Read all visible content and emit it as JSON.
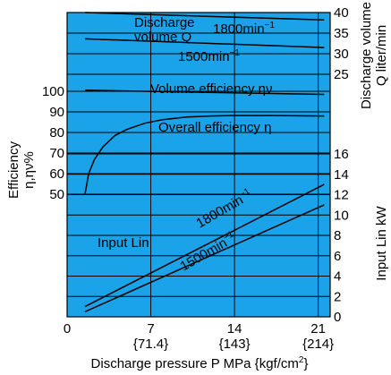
{
  "chart_data": {
    "type": "line",
    "x_axis": {
      "label_main": "Discharge pressure P MPa {kgf/cm",
      "label_sup": "2",
      "label_end": "}",
      "range": [
        0,
        22
      ],
      "ticks": [
        0,
        7,
        14,
        21
      ],
      "tick_labels": [
        "0",
        "7",
        "14",
        "21"
      ],
      "sub_tick_labels": [
        "",
        "{71.4}",
        "{143}",
        "{214}"
      ]
    },
    "left_axis": {
      "label_line1": "Efficiency",
      "label_line2": "η,ην%",
      "ticks": [
        50,
        60,
        70,
        80,
        90,
        100
      ],
      "tick_labels": [
        "50",
        "60",
        "70",
        "80",
        "90",
        "100"
      ]
    },
    "right_upper_axis": {
      "label_line1": "Discharge volume",
      "label_line2": "Q liter/min",
      "ticks": [
        25,
        30,
        35,
        40
      ],
      "tick_labels": [
        "25",
        "30",
        "35",
        "40"
      ]
    },
    "right_lower_axis": {
      "label": "Input Lin kW",
      "ticks": [
        0,
        2,
        4,
        6,
        8,
        10,
        12,
        14,
        16
      ],
      "tick_labels": [
        "0",
        "2",
        "4",
        "6",
        "8",
        "10",
        "12",
        "14",
        "16"
      ]
    },
    "grid": true,
    "background_color": "#1aa3e8",
    "series": [
      {
        "group": "discharge_volume",
        "speed": "1800",
        "x": [
          1.5,
          21.5
        ],
        "y": [
          40,
          38.2
        ]
      },
      {
        "group": "discharge_volume",
        "speed": "1500",
        "x": [
          1.5,
          21.5
        ],
        "y": [
          33.6,
          31.5
        ]
      },
      {
        "group": "volume_efficiency",
        "x": [
          1.5,
          21.5
        ],
        "y": [
          100.5,
          98.5
        ]
      },
      {
        "group": "overall_efficiency",
        "x": [
          1.5,
          1.8,
          2.3,
          3.0,
          4.0,
          5.0,
          6.5,
          8.0,
          10.0,
          12.0,
          14.0,
          17.0,
          21.5
        ],
        "y": [
          50,
          60,
          67,
          73,
          78.5,
          81.5,
          84.5,
          86.2,
          87.5,
          88.0,
          88.2,
          88.2,
          88.0
        ]
      },
      {
        "group": "input",
        "speed": "1800",
        "x": [
          1.5,
          21.5
        ],
        "y": [
          1.0,
          13.0
        ]
      },
      {
        "group": "input",
        "speed": "1500",
        "x": [
          1.5,
          21.5
        ],
        "y": [
          0.5,
          11.0
        ]
      }
    ],
    "annotations": {
      "discharge_line1": "Discharge",
      "discharge_line2": "volume Q",
      "speed_1800": "1800min",
      "speed_1500": "1500min",
      "speed_sup": "−1",
      "volume_efficiency": "Volume efficiency ην",
      "overall_efficiency": "Overall efficiency η",
      "input_lin": "Input Lin"
    }
  }
}
